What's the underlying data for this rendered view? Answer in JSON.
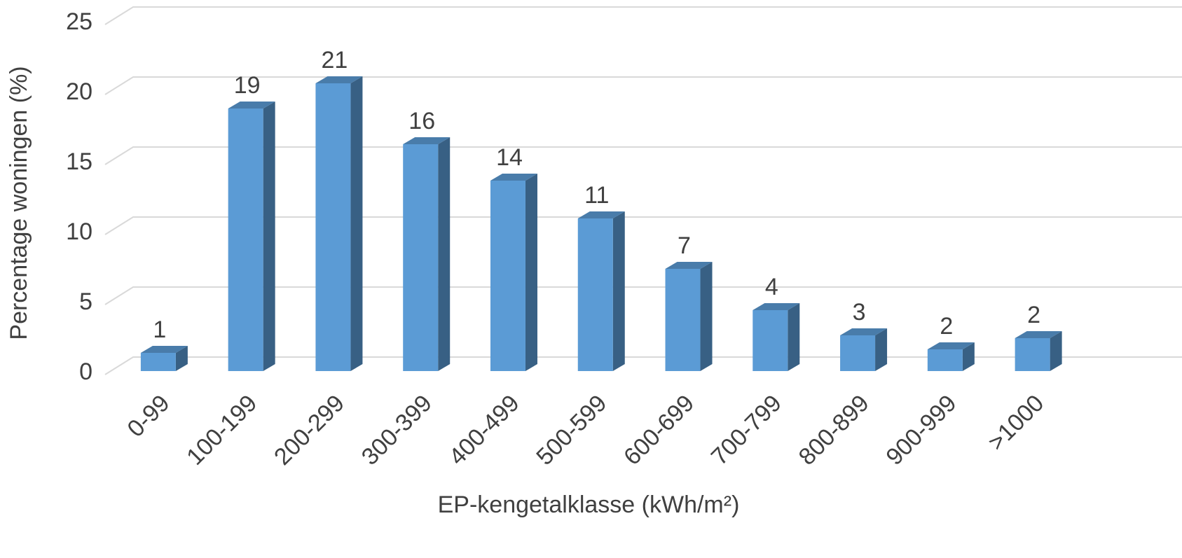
{
  "chart_data": {
    "type": "bar3d",
    "y_label": "Percentage woningen (%)",
    "x_label": "EP-kengetalklasse (kWh/m²)",
    "categories": [
      "0-99",
      "100-199",
      "200-299",
      "300-399",
      "400-499",
      "500-599",
      "600-699",
      "700-799",
      "800-899",
      "900-999",
      ">1000"
    ],
    "values": [
      1.3,
      18.75,
      20.55,
      16.2,
      13.6,
      10.9,
      7.3,
      4.35,
      2.55,
      1.55,
      2.35
    ],
    "value_labels": [
      "1",
      "19",
      "21",
      "16",
      "14",
      "11",
      "7",
      "4",
      "3",
      "2",
      "2"
    ],
    "color": "#5b9bd5",
    "ylim": [
      0,
      25
    ],
    "yticks": [
      0,
      5,
      10,
      15,
      20,
      25
    ],
    "grid": true
  }
}
